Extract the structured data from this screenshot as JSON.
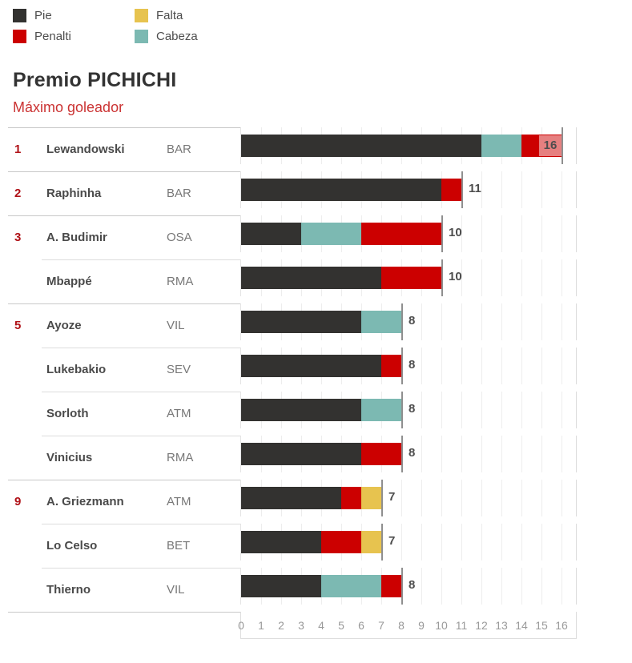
{
  "header": {
    "title": "Premio PICHICHI",
    "subtitle": "Máximo goleador"
  },
  "legend": {
    "items": [
      {
        "label": "Pie",
        "color": "#333230"
      },
      {
        "label": "Penalti",
        "color": "#cc0000"
      },
      {
        "label": "Falta",
        "color": "#e7c34f"
      },
      {
        "label": "Cabeza",
        "color": "#7cb9b2"
      }
    ]
  },
  "chart_data": {
    "type": "bar",
    "stacked": true,
    "orientation": "horizontal",
    "title": "Premio PICHICHI",
    "subtitle": "Máximo goleador",
    "legend_position": "top-left",
    "grid": true,
    "colors": {
      "Pie": "#333230",
      "Penalti": "#cc0000",
      "Falta": "#e7c34f",
      "Cabeza": "#7cb9b2"
    },
    "x_axis": {
      "min": 0,
      "max": 16,
      "tick_labels": [
        "0",
        "1",
        "2",
        "3",
        "4",
        "5",
        "6",
        "7",
        "8",
        "9",
        "10",
        "11",
        "12",
        "13",
        "14",
        "15",
        "16"
      ]
    },
    "rows": [
      {
        "rank": "1",
        "player": "Lewandowski",
        "team": "BAR",
        "total": 16,
        "total_label": "16",
        "label_inside": true,
        "segments": [
          {
            "key": "Pie",
            "value": 12
          },
          {
            "key": "Cabeza",
            "value": 2
          },
          {
            "key": "Penalti",
            "value": 2
          }
        ]
      },
      {
        "rank": "2",
        "player": "Raphinha",
        "team": "BAR",
        "total": 11,
        "total_label": "11",
        "label_inside": false,
        "segments": [
          {
            "key": "Pie",
            "value": 10
          },
          {
            "key": "Penalti",
            "value": 1
          }
        ]
      },
      {
        "rank": "3",
        "player": "A. Budimir",
        "team": "OSA",
        "total": 10,
        "total_label": "10",
        "label_inside": false,
        "segments": [
          {
            "key": "Pie",
            "value": 3
          },
          {
            "key": "Cabeza",
            "value": 3
          },
          {
            "key": "Penalti",
            "value": 4
          }
        ]
      },
      {
        "rank": "",
        "player": "Mbappé",
        "team": "RMA",
        "total": 10,
        "total_label": "10",
        "label_inside": false,
        "segments": [
          {
            "key": "Pie",
            "value": 7
          },
          {
            "key": "Penalti",
            "value": 3
          }
        ]
      },
      {
        "rank": "5",
        "player": "Ayoze",
        "team": "VIL",
        "total": 8,
        "total_label": "8",
        "label_inside": false,
        "segments": [
          {
            "key": "Pie",
            "value": 6
          },
          {
            "key": "Cabeza",
            "value": 2
          }
        ]
      },
      {
        "rank": "",
        "player": "Lukebakio",
        "team": "SEV",
        "total": 8,
        "total_label": "8",
        "label_inside": false,
        "segments": [
          {
            "key": "Pie",
            "value": 7
          },
          {
            "key": "Penalti",
            "value": 1
          }
        ]
      },
      {
        "rank": "",
        "player": "Sorloth",
        "team": "ATM",
        "total": 8,
        "total_label": "8",
        "label_inside": false,
        "segments": [
          {
            "key": "Pie",
            "value": 6
          },
          {
            "key": "Cabeza",
            "value": 2
          }
        ]
      },
      {
        "rank": "",
        "player": "Vinicius",
        "team": "RMA",
        "total": 8,
        "total_label": "8",
        "label_inside": false,
        "segments": [
          {
            "key": "Pie",
            "value": 6
          },
          {
            "key": "Penalti",
            "value": 2
          }
        ]
      },
      {
        "rank": "9",
        "player": "A. Griezmann",
        "team": "ATM",
        "total": 7,
        "total_label": "7",
        "label_inside": false,
        "segments": [
          {
            "key": "Pie",
            "value": 5
          },
          {
            "key": "Penalti",
            "value": 1
          },
          {
            "key": "Falta",
            "value": 1
          }
        ]
      },
      {
        "rank": "",
        "player": "Lo Celso",
        "team": "BET",
        "total": 7,
        "total_label": "7",
        "label_inside": false,
        "segments": [
          {
            "key": "Pie",
            "value": 4
          },
          {
            "key": "Penalti",
            "value": 2
          },
          {
            "key": "Falta",
            "value": 1
          }
        ]
      },
      {
        "rank": "",
        "player": "Thierno",
        "team": "VIL",
        "total": 8,
        "total_label": "8",
        "label_inside": false,
        "segments": [
          {
            "key": "Pie",
            "value": 4
          },
          {
            "key": "Cabeza",
            "value": 3
          },
          {
            "key": "Penalti",
            "value": 1
          }
        ]
      }
    ]
  }
}
